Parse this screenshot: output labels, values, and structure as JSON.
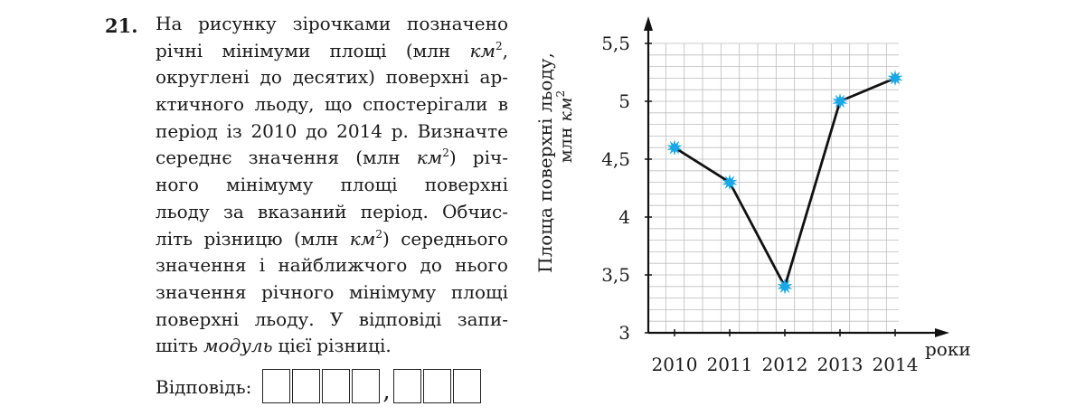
{
  "task": {
    "number": "21.",
    "lines": [
      [
        "На",
        "рисунку",
        "зірочками",
        "позначено"
      ],
      [
        "річні",
        "мінімуми",
        "площі",
        "(млн",
        "км|2,"
      ],
      [
        "округлені",
        "до",
        "десятих)",
        "поверхні",
        "ар-"
      ],
      [
        "ктичного",
        "льоду,",
        "що",
        "спостерігали",
        "в"
      ],
      [
        "період",
        "із",
        "2010",
        "до",
        "2014",
        "р.",
        "Визначте"
      ],
      [
        "середнє",
        "значення",
        "(млн",
        "км|2)",
        "річ-"
      ],
      [
        "ного",
        "мінімуму",
        "площі",
        "поверхні"
      ],
      [
        "льоду",
        "за",
        "вказаний",
        "період.",
        "Обчис-"
      ],
      [
        "літь",
        "різницю",
        "(млн",
        "км|2)",
        "середнього"
      ],
      [
        "значення",
        "і",
        "найближчого",
        "до",
        "нього"
      ],
      [
        "значення",
        "річного",
        "мінімуму",
        "площі"
      ],
      [
        "поверхні",
        "льоду.",
        "У",
        "відповіді",
        "запи-"
      ],
      [
        "шіть",
        "*модуль",
        "цієї",
        "різниці."
      ]
    ],
    "answer_label": "Відповідь:"
  },
  "chart_data": {
    "type": "line",
    "categories": [
      "2010",
      "2011",
      "2012",
      "2013",
      "2014"
    ],
    "values": [
      4.6,
      4.3,
      3.4,
      5.0,
      5.2
    ],
    "ylabel_line1": "Площа поверхні льоду,",
    "ylabel_line2_prefix": "млн ",
    "ylabel_line2_unit": "км",
    "ylabel_line2_exp": "2",
    "xlabel": "роки",
    "yticks": [
      "3",
      "3,5",
      "4",
      "4,5",
      "5",
      "5,5"
    ],
    "ytick_values": [
      3,
      3.5,
      4,
      4.5,
      5,
      5.5
    ],
    "ylim": [
      3,
      5.5
    ],
    "grid": true,
    "marker": "star",
    "colors": {
      "line": "#111111",
      "marker": "#19a8e6",
      "grid": "#bdbdbd",
      "axis": "#111111"
    }
  }
}
